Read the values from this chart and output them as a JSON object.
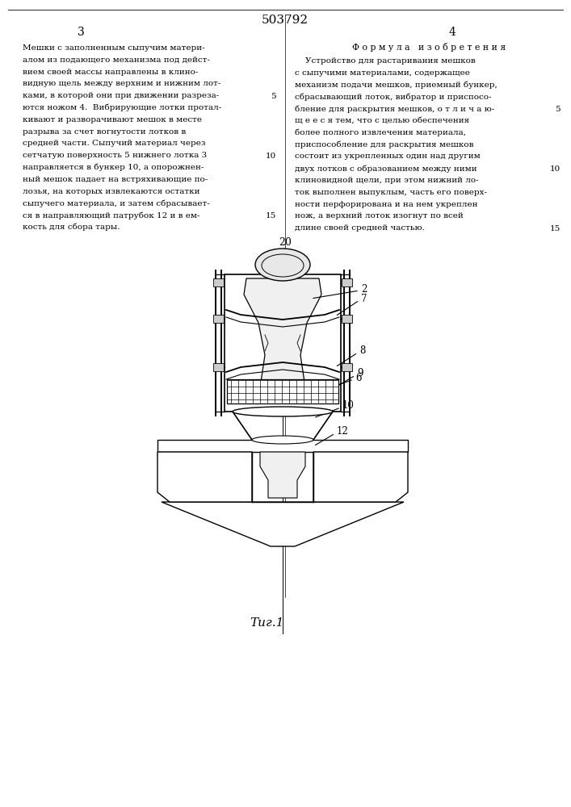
{
  "page_number": "503792",
  "col_left_number": "3",
  "col_right_number": "4",
  "background": "#ffffff",
  "text_color": "#000000",
  "fig_label": "20",
  "fig_caption": "Τиг.1",
  "left_lines": [
    "Мешки с заполненным сыпучим матери-",
    "алом из подающего механизма под дейст-",
    "вием своей массы направлены в клино-",
    "видную щель между верхним и нижним лот-",
    "ками, в которой они при движении разреза-",
    "ются ножом 4.  Вибрирующие лотки протал-",
    "кивают и разворачивают мешок в месте",
    "разрыва за счет вогнутости лотков в",
    "средней части. Сыпучий материал через",
    "сетчатую поверхность 5 нижнего лотка 3",
    "направляется в бункер 10, а опорожнен-",
    "ный мешок падает на встряхивающие по-",
    "лозья, на которых извлекаются остатки",
    "сыпучего материала, и затем сбрасывает-",
    "ся в направляющий патрубок 12 и в ем-",
    "кость для сбора тары."
  ],
  "right_header": "Ф о р м у л а   и з о б р е т е н и я",
  "right_lines": [
    "    Устройство для растаривания мешков",
    "с сыпучими материалами, содержащее",
    "механизм подачи мешков, приемный бункер,",
    "сбрасывающий лоток, вибратор и приспосо-",
    "бление для раскрытия мешков, о т л и ч а ю-",
    "щ е е с я тем, что с целью обеспечения",
    "более полного извлечения материала,",
    "приспособление для раскрытия мешков",
    "состоит из укрепленных один над другим",
    "двух лотков с образованием между ними",
    "клиновидной щели, при этом нижний ло-",
    "ток выполнен выпуклым, часть его поверх-",
    "ности перфорирована и на нем укреплен",
    "нож, а верхний лоток изогнут по всей",
    "длине своей средней частью."
  ]
}
